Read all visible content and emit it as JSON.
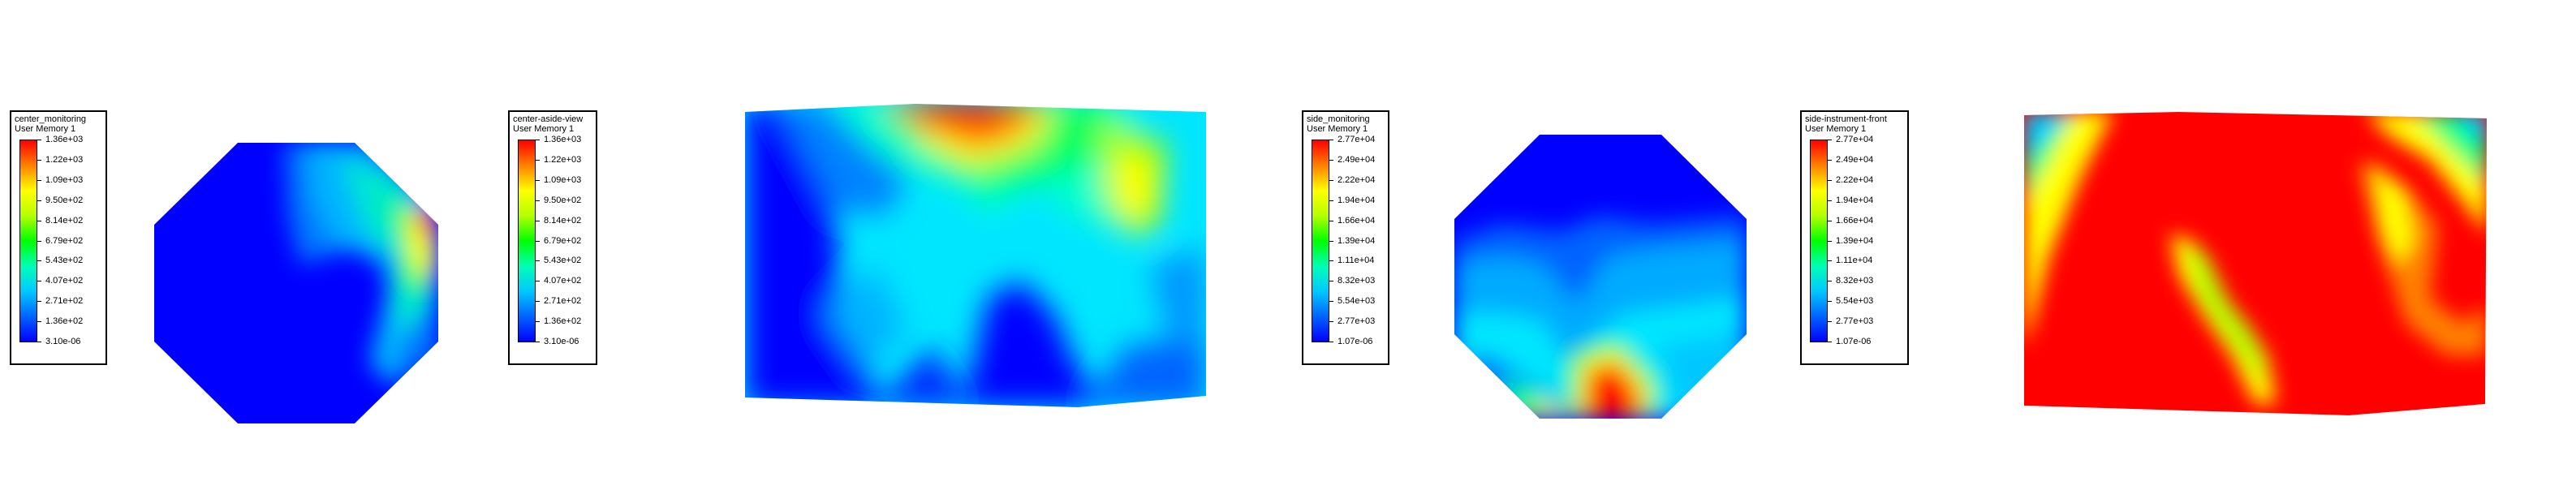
{
  "chart_data": [
    {
      "type": "heatmap",
      "title": "center_monitoring",
      "subtitle": "User Memory 1",
      "colorbar_ticks": [
        "1.36e+03",
        "1.22e+03",
        "1.09e+03",
        "9.50e+02",
        "8.14e+02",
        "6.79e+02",
        "5.43e+02",
        "4.07e+02",
        "2.71e+02",
        "1.36e+02",
        "3.10e-06"
      ],
      "range": [
        3.1e-06,
        1360
      ],
      "colormap": [
        "#0000ff",
        "#00c8ff",
        "#00ff00",
        "#ffff00",
        "#ff0000"
      ],
      "shape": "octagon"
    },
    {
      "type": "heatmap",
      "title": "center-aside-view",
      "subtitle": "User Memory 1",
      "colorbar_ticks": [
        "1.36e+03",
        "1.22e+03",
        "1.09e+03",
        "9.50e+02",
        "8.14e+02",
        "6.79e+02",
        "5.43e+02",
        "4.07e+02",
        "2.71e+02",
        "1.36e+02",
        "3.10e-06"
      ],
      "range": [
        3.1e-06,
        1360
      ],
      "colormap": [
        "#0000ff",
        "#00c8ff",
        "#00ff00",
        "#ffff00",
        "#ff0000"
      ],
      "shape": "rectangle"
    },
    {
      "type": "heatmap",
      "title": "side_monitoring",
      "subtitle": "User Memory 1",
      "colorbar_ticks": [
        "2.77e+04",
        "2.49e+04",
        "2.22e+04",
        "1.94e+04",
        "1.66e+04",
        "1.39e+04",
        "1.11e+04",
        "8.32e+03",
        "5.54e+03",
        "2.77e+03",
        "1.07e-06"
      ],
      "range": [
        1.07e-06,
        27700
      ],
      "colormap": [
        "#0000ff",
        "#00c8ff",
        "#00ff00",
        "#ffff00",
        "#ff0000"
      ],
      "shape": "octagon"
    },
    {
      "type": "heatmap",
      "title": "side-instrument-front",
      "subtitle": "User Memory 1",
      "colorbar_ticks": [
        "2.77e+04",
        "2.49e+04",
        "2.22e+04",
        "1.94e+04",
        "1.66e+04",
        "1.39e+04",
        "1.11e+04",
        "8.32e+03",
        "5.54e+03",
        "2.77e+03",
        "1.07e-06"
      ],
      "range": [
        1.07e-06,
        27700
      ],
      "colormap": [
        "#0000ff",
        "#00c8ff",
        "#00ff00",
        "#ffff00",
        "#ff0000"
      ],
      "shape": "rectangle"
    }
  ]
}
